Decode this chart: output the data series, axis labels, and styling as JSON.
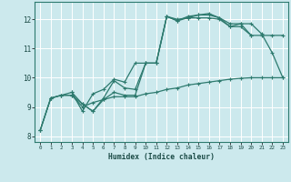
{
  "xlabel": "Humidex (Indice chaleur)",
  "background_color": "#cce9ed",
  "grid_color": "#ffffff",
  "line_color": "#2d7a6e",
  "xlim": [
    -0.5,
    23.5
  ],
  "ylim": [
    7.8,
    12.6
  ],
  "xticks": [
    0,
    1,
    2,
    3,
    4,
    5,
    6,
    7,
    8,
    9,
    10,
    11,
    12,
    13,
    14,
    15,
    16,
    17,
    18,
    19,
    20,
    21,
    22,
    23
  ],
  "yticks": [
    8,
    9,
    10,
    11,
    12
  ],
  "line1_x": [
    0,
    1,
    2,
    3,
    4,
    5,
    6,
    7,
    8,
    9,
    10,
    11,
    12,
    13,
    14,
    15,
    16,
    17,
    18,
    19,
    20
  ],
  "line1_y": [
    8.2,
    9.3,
    9.4,
    9.4,
    9.1,
    8.85,
    9.3,
    9.9,
    9.65,
    9.6,
    10.5,
    10.5,
    12.1,
    11.95,
    12.1,
    12.15,
    12.15,
    12.05,
    11.75,
    11.85,
    11.45
  ],
  "line2_x": [
    0,
    1,
    2,
    3,
    4,
    5,
    6,
    7,
    8,
    9,
    10,
    11,
    12,
    13,
    14,
    15,
    16,
    17,
    18,
    19,
    20,
    21,
    22,
    23
  ],
  "line2_y": [
    8.2,
    9.3,
    9.4,
    9.4,
    9.0,
    9.15,
    9.25,
    9.35,
    9.35,
    9.35,
    9.45,
    9.5,
    9.6,
    9.65,
    9.75,
    9.8,
    9.85,
    9.9,
    9.95,
    9.98,
    10.0,
    10.0,
    10.0,
    10.0
  ],
  "line3_x": [
    3,
    4,
    5,
    6,
    7,
    8,
    9,
    10,
    11,
    12,
    13,
    14,
    15,
    16,
    17,
    18,
    19,
    20,
    21,
    22,
    23
  ],
  "line3_y": [
    9.5,
    8.85,
    9.45,
    9.6,
    9.95,
    9.85,
    10.5,
    10.5,
    10.5,
    12.1,
    12.0,
    12.05,
    12.15,
    12.2,
    12.05,
    11.85,
    11.85,
    11.85,
    11.5,
    10.85,
    10.0
  ],
  "line4_x": [
    0,
    1,
    2,
    3,
    4,
    5,
    6,
    7,
    8,
    9,
    10,
    11,
    12,
    13,
    14,
    15,
    16,
    17,
    18,
    19,
    20,
    21,
    22,
    23
  ],
  "line4_y": [
    8.2,
    9.3,
    9.4,
    9.5,
    9.1,
    8.85,
    9.25,
    9.5,
    9.4,
    9.4,
    10.5,
    10.5,
    12.1,
    11.95,
    12.05,
    12.05,
    12.05,
    12.0,
    11.75,
    11.75,
    11.45,
    11.45,
    11.45,
    11.45
  ]
}
